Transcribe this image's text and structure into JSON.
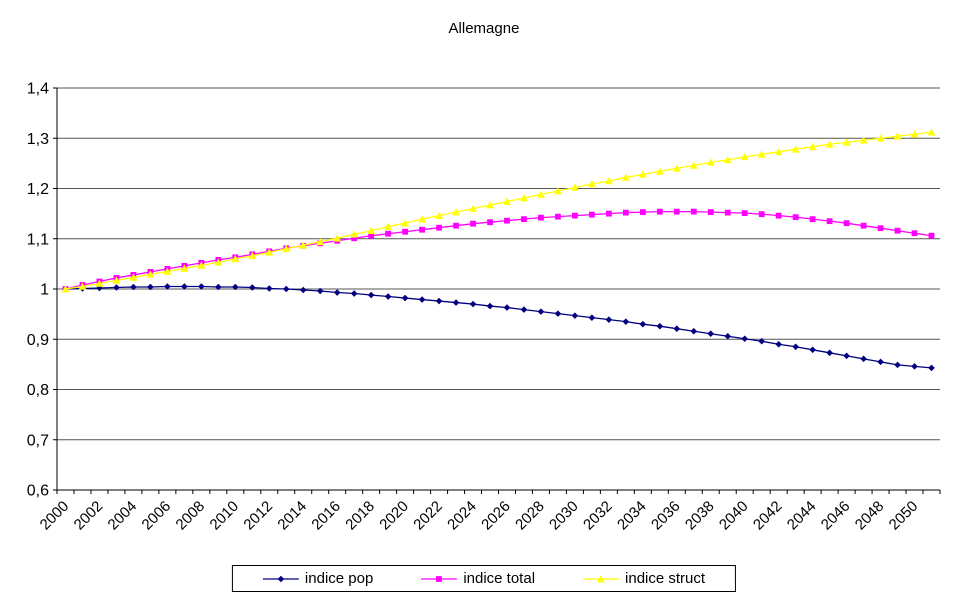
{
  "chart_data": {
    "type": "line",
    "title": "Allemagne",
    "grid": "horizontal",
    "legend_position": "bottom",
    "decimal_separator": ",",
    "ylim": [
      0.6,
      1.4
    ],
    "ytick_interval": 0.1,
    "yticks": {
      "values": [
        0.6,
        0.7,
        0.8,
        0.9,
        1.0,
        1.1,
        1.2,
        1.3,
        1.4
      ],
      "labels": [
        "0,6",
        "0,7",
        "0,8",
        "0,9",
        "1",
        "1,1",
        "1,2",
        "1,3",
        "1,4"
      ]
    },
    "x": [
      2000,
      2001,
      2002,
      2003,
      2004,
      2005,
      2006,
      2007,
      2008,
      2009,
      2010,
      2011,
      2012,
      2013,
      2014,
      2015,
      2016,
      2017,
      2018,
      2019,
      2020,
      2021,
      2022,
      2023,
      2024,
      2025,
      2026,
      2027,
      2028,
      2029,
      2030,
      2031,
      2032,
      2033,
      2034,
      2035,
      2036,
      2037,
      2038,
      2039,
      2040,
      2041,
      2042,
      2043,
      2044,
      2045,
      2046,
      2047,
      2048,
      2049,
      2050,
      2051
    ],
    "x_tick_step": 2,
    "x_labels": [
      "2000",
      "2002",
      "2004",
      "2006",
      "2008",
      "2010",
      "2012",
      "2014",
      "2016",
      "2018",
      "2020",
      "2022",
      "2024",
      "2026",
      "2028",
      "2030",
      "2032",
      "2034",
      "2036",
      "2038",
      "2040",
      "2042",
      "2044",
      "2046",
      "2048",
      "2050"
    ],
    "series": [
      {
        "name": "indice pop",
        "color": "#000080",
        "marker": "diamond",
        "values": [
          1.0,
          1.001,
          1.002,
          1.003,
          1.004,
          1.004,
          1.005,
          1.005,
          1.005,
          1.004,
          1.004,
          1.003,
          1.001,
          1.0,
          0.998,
          0.996,
          0.993,
          0.991,
          0.988,
          0.985,
          0.982,
          0.979,
          0.976,
          0.973,
          0.97,
          0.966,
          0.963,
          0.959,
          0.955,
          0.951,
          0.947,
          0.943,
          0.939,
          0.935,
          0.93,
          0.926,
          0.921,
          0.916,
          0.911,
          0.906,
          0.901,
          0.896,
          0.89,
          0.885,
          0.879,
          0.873,
          0.867,
          0.861,
          0.855,
          0.849,
          0.846,
          0.843
        ]
      },
      {
        "name": "indice total",
        "color": "#FF00FF",
        "marker": "square",
        "values": [
          1.0,
          1.008,
          1.015,
          1.022,
          1.028,
          1.034,
          1.04,
          1.046,
          1.052,
          1.058,
          1.063,
          1.069,
          1.075,
          1.081,
          1.086,
          1.091,
          1.096,
          1.101,
          1.106,
          1.11,
          1.114,
          1.118,
          1.122,
          1.126,
          1.13,
          1.133,
          1.136,
          1.139,
          1.142,
          1.144,
          1.146,
          1.148,
          1.15,
          1.152,
          1.153,
          1.154,
          1.154,
          1.154,
          1.153,
          1.152,
          1.151,
          1.149,
          1.146,
          1.143,
          1.139,
          1.135,
          1.131,
          1.126,
          1.121,
          1.116,
          1.111,
          1.106
        ]
      },
      {
        "name": "indice struct",
        "color": "#FFFF00",
        "marker": "triangle",
        "values": [
          1.0,
          1.005,
          1.011,
          1.017,
          1.023,
          1.029,
          1.035,
          1.041,
          1.047,
          1.053,
          1.06,
          1.066,
          1.073,
          1.08,
          1.087,
          1.094,
          1.101,
          1.109,
          1.116,
          1.124,
          1.131,
          1.139,
          1.146,
          1.153,
          1.16,
          1.167,
          1.174,
          1.181,
          1.188,
          1.195,
          1.202,
          1.209,
          1.215,
          1.222,
          1.228,
          1.234,
          1.24,
          1.246,
          1.252,
          1.257,
          1.263,
          1.268,
          1.273,
          1.278,
          1.283,
          1.288,
          1.292,
          1.296,
          1.3,
          1.304,
          1.308,
          1.312
        ]
      }
    ]
  }
}
